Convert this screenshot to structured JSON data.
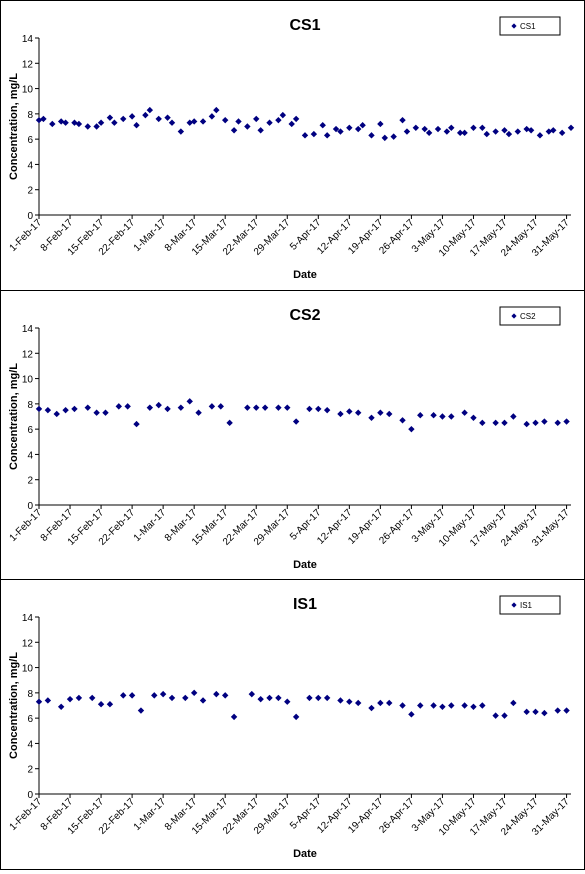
{
  "chart_data": [
    {
      "type": "scatter",
      "title": "CS1",
      "xlabel": "Date",
      "ylabel": "Concentration, mg/L",
      "ylim": [
        0,
        14
      ],
      "yticks": [
        0,
        2,
        4,
        6,
        8,
        10,
        12,
        14
      ],
      "xlim": [
        "2017-02-01",
        "2017-06-01"
      ],
      "xticks": [
        "1-Feb-17",
        "8-Feb-17",
        "15-Feb-17",
        "22-Feb-17",
        "1-Mar-17",
        "8-Mar-17",
        "15-Mar-17",
        "22-Mar-17",
        "29-Mar-17",
        "5-Apr-17",
        "12-Apr-17",
        "19-Apr-17",
        "26-Apr-17",
        "3-May-17",
        "10-May-17",
        "17-May-17",
        "24-May-17",
        "31-May-17"
      ],
      "grid": false,
      "legend": "top-right",
      "marker_color": "#000080",
      "series": [
        {
          "name": "CS1",
          "x": [
            "2017-02-01",
            "2017-02-02",
            "2017-02-04",
            "2017-02-06",
            "2017-02-07",
            "2017-02-09",
            "2017-02-10",
            "2017-02-12",
            "2017-02-14",
            "2017-02-15",
            "2017-02-17",
            "2017-02-18",
            "2017-02-20",
            "2017-02-22",
            "2017-02-23",
            "2017-02-25",
            "2017-02-26",
            "2017-02-28",
            "2017-03-02",
            "2017-03-03",
            "2017-03-05",
            "2017-03-07",
            "2017-03-08",
            "2017-03-10",
            "2017-03-12",
            "2017-03-13",
            "2017-03-15",
            "2017-03-17",
            "2017-03-18",
            "2017-03-20",
            "2017-03-22",
            "2017-03-23",
            "2017-03-25",
            "2017-03-27",
            "2017-03-28",
            "2017-03-30",
            "2017-03-31",
            "2017-04-02",
            "2017-04-04",
            "2017-04-06",
            "2017-04-07",
            "2017-04-09",
            "2017-04-10",
            "2017-04-12",
            "2017-04-14",
            "2017-04-15",
            "2017-04-17",
            "2017-04-19",
            "2017-04-20",
            "2017-04-22",
            "2017-04-24",
            "2017-04-25",
            "2017-04-27",
            "2017-04-29",
            "2017-04-30",
            "2017-05-02",
            "2017-05-04",
            "2017-05-05",
            "2017-05-07",
            "2017-05-08",
            "2017-05-10",
            "2017-05-12",
            "2017-05-13",
            "2017-05-15",
            "2017-05-17",
            "2017-05-18",
            "2017-05-20",
            "2017-05-22",
            "2017-05-23",
            "2017-05-25",
            "2017-05-27",
            "2017-05-28",
            "2017-05-30",
            "2017-06-01"
          ],
          "y": [
            7.5,
            7.6,
            7.2,
            7.4,
            7.3,
            7.3,
            7.2,
            7.0,
            7.0,
            7.3,
            7.7,
            7.3,
            7.6,
            7.8,
            7.1,
            7.9,
            8.3,
            7.6,
            7.7,
            7.3,
            6.6,
            7.3,
            7.4,
            7.4,
            7.8,
            8.3,
            7.5,
            6.7,
            7.4,
            7.0,
            7.6,
            6.7,
            7.3,
            7.5,
            7.9,
            7.2,
            7.6,
            6.3,
            6.4,
            7.1,
            6.3,
            6.8,
            6.6,
            6.9,
            6.8,
            7.1,
            6.3,
            7.2,
            6.1,
            6.2,
            7.5,
            6.6,
            6.9,
            6.8,
            6.5,
            6.8,
            6.6,
            6.9,
            6.5,
            6.5,
            6.9,
            6.9,
            6.4,
            6.6,
            6.7,
            6.4,
            6.6,
            6.8,
            6.7,
            6.3,
            6.6,
            6.7,
            6.5,
            6.9
          ]
        }
      ]
    },
    {
      "type": "scatter",
      "title": "CS2",
      "xlabel": "Date",
      "ylabel": "Concentration, mg/L",
      "ylim": [
        0,
        14
      ],
      "yticks": [
        0,
        2,
        4,
        6,
        8,
        10,
        12,
        14
      ],
      "xlim": [
        "2017-02-01",
        "2017-06-01"
      ],
      "xticks": [
        "1-Feb-17",
        "8-Feb-17",
        "15-Feb-17",
        "22-Feb-17",
        "1-Mar-17",
        "8-Mar-17",
        "15-Mar-17",
        "22-Mar-17",
        "29-Mar-17",
        "5-Apr-17",
        "12-Apr-17",
        "19-Apr-17",
        "26-Apr-17",
        "3-May-17",
        "10-May-17",
        "17-May-17",
        "24-May-17",
        "31-May-17"
      ],
      "grid": false,
      "legend": "top-right",
      "marker_color": "#000080",
      "series": [
        {
          "name": "CS2",
          "x": [
            "2017-02-01",
            "2017-02-03",
            "2017-02-05",
            "2017-02-07",
            "2017-02-09",
            "2017-02-12",
            "2017-02-14",
            "2017-02-16",
            "2017-02-19",
            "2017-02-21",
            "2017-02-23",
            "2017-02-26",
            "2017-02-28",
            "2017-03-02",
            "2017-03-05",
            "2017-03-07",
            "2017-03-09",
            "2017-03-12",
            "2017-03-14",
            "2017-03-16",
            "2017-03-20",
            "2017-03-22",
            "2017-03-24",
            "2017-03-27",
            "2017-03-29",
            "2017-03-31",
            "2017-04-03",
            "2017-04-05",
            "2017-04-07",
            "2017-04-10",
            "2017-04-12",
            "2017-04-14",
            "2017-04-17",
            "2017-04-19",
            "2017-04-21",
            "2017-04-24",
            "2017-04-26",
            "2017-04-28",
            "2017-05-01",
            "2017-05-03",
            "2017-05-05",
            "2017-05-08",
            "2017-05-10",
            "2017-05-12",
            "2017-05-15",
            "2017-05-17",
            "2017-05-19",
            "2017-05-22",
            "2017-05-24",
            "2017-05-26",
            "2017-05-29",
            "2017-05-31"
          ],
          "y": [
            7.6,
            7.5,
            7.2,
            7.5,
            7.6,
            7.7,
            7.3,
            7.3,
            7.8,
            7.8,
            6.4,
            7.7,
            7.9,
            7.6,
            7.7,
            8.2,
            7.3,
            7.8,
            7.8,
            6.5,
            7.7,
            7.7,
            7.7,
            7.7,
            7.7,
            6.6,
            7.6,
            7.6,
            7.5,
            7.2,
            7.4,
            7.3,
            6.9,
            7.3,
            7.2,
            6.7,
            6.0,
            7.1,
            7.1,
            7.0,
            7.0,
            7.3,
            6.9,
            6.5,
            6.5,
            6.5,
            7.0,
            6.4,
            6.5,
            6.6,
            6.5,
            6.6
          ]
        }
      ]
    },
    {
      "type": "scatter",
      "title": "IS1",
      "xlabel": "Date",
      "ylabel": "Concentration, mg/L",
      "ylim": [
        0,
        14
      ],
      "yticks": [
        0,
        2,
        4,
        6,
        8,
        10,
        12,
        14
      ],
      "xlim": [
        "2017-02-01",
        "2017-06-01"
      ],
      "xticks": [
        "1-Feb-17",
        "8-Feb-17",
        "15-Feb-17",
        "22-Feb-17",
        "1-Mar-17",
        "8-Mar-17",
        "15-Mar-17",
        "22-Mar-17",
        "29-Mar-17",
        "5-Apr-17",
        "12-Apr-17",
        "19-Apr-17",
        "26-Apr-17",
        "3-May-17",
        "10-May-17",
        "17-May-17",
        "24-May-17",
        "31-May-17"
      ],
      "grid": false,
      "legend": "top-right",
      "marker_color": "#000080",
      "series": [
        {
          "name": "IS1",
          "x": [
            "2017-02-01",
            "2017-02-03",
            "2017-02-06",
            "2017-02-08",
            "2017-02-10",
            "2017-02-13",
            "2017-02-15",
            "2017-02-17",
            "2017-02-20",
            "2017-02-22",
            "2017-02-24",
            "2017-02-27",
            "2017-03-01",
            "2017-03-03",
            "2017-03-06",
            "2017-03-08",
            "2017-03-10",
            "2017-03-13",
            "2017-03-15",
            "2017-03-17",
            "2017-03-21",
            "2017-03-23",
            "2017-03-25",
            "2017-03-27",
            "2017-03-29",
            "2017-03-31",
            "2017-04-03",
            "2017-04-05",
            "2017-04-07",
            "2017-04-10",
            "2017-04-12",
            "2017-04-14",
            "2017-04-17",
            "2017-04-19",
            "2017-04-21",
            "2017-04-24",
            "2017-04-26",
            "2017-04-28",
            "2017-05-01",
            "2017-05-03",
            "2017-05-05",
            "2017-05-08",
            "2017-05-10",
            "2017-05-12",
            "2017-05-15",
            "2017-05-17",
            "2017-05-19",
            "2017-05-22",
            "2017-05-24",
            "2017-05-26",
            "2017-05-29",
            "2017-05-31"
          ],
          "y": [
            7.3,
            7.4,
            6.9,
            7.5,
            7.6,
            7.6,
            7.1,
            7.1,
            7.8,
            7.8,
            6.6,
            7.8,
            7.9,
            7.6,
            7.6,
            8.0,
            7.4,
            7.9,
            7.8,
            6.1,
            7.9,
            7.5,
            7.6,
            7.6,
            7.3,
            6.1,
            7.6,
            7.6,
            7.6,
            7.4,
            7.3,
            7.2,
            6.8,
            7.2,
            7.2,
            7.0,
            6.3,
            7.0,
            7.0,
            6.9,
            7.0,
            7.0,
            6.9,
            7.0,
            6.2,
            6.2,
            7.2,
            6.5,
            6.5,
            6.4,
            6.6,
            6.6
          ]
        }
      ]
    }
  ]
}
